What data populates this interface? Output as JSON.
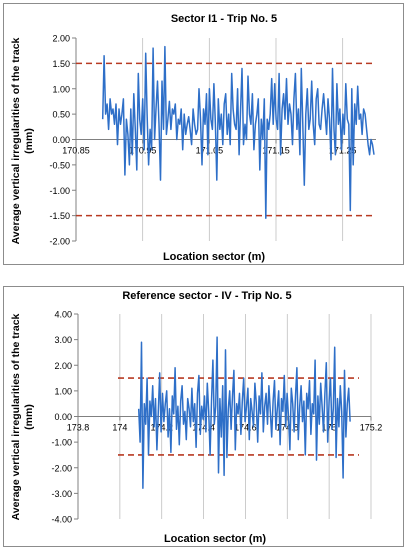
{
  "chart_data": [
    {
      "type": "line",
      "title": "Sector I1 - Trip No. 5",
      "xlabel": "Location sector (m)",
      "ylabel": "Average vertical irregularities of the track (mm)",
      "ylabel_lines": [
        "Average vertical irregularities of the track",
        "(mm)"
      ],
      "xlim": [
        170.85,
        171.3
      ],
      "ylim": [
        -2.0,
        2.0
      ],
      "x_ticks": [
        "170.85",
        "170.95",
        "171.05",
        "171.15",
        "171.25"
      ],
      "x_tick_values": [
        170.85,
        170.95,
        171.05,
        171.15,
        171.25
      ],
      "y_ticks": [
        "2.00",
        "1.50",
        "1.00",
        "0.50",
        "0.00",
        "-0.50",
        "-1.00",
        "-1.50",
        "-2.00"
      ],
      "y_tick_values": [
        2.0,
        1.5,
        1.0,
        0.5,
        0.0,
        -0.5,
        -1.0,
        -1.5,
        -2.0
      ],
      "thresholds": [
        1.5,
        -1.5
      ],
      "grid": "vertical",
      "series": [
        {
          "color": "#2e6fc8",
          "x_start": 170.89,
          "x_end": 171.297,
          "values": [
            0.4,
            1.65,
            0.5,
            0.7,
            0.2,
            0.8,
            0.5,
            0.6,
            0.3,
            0.7,
            -0.1,
            0.6,
            0.3,
            0.5,
            0.8,
            -0.7,
            0.4,
            0.1,
            -0.5,
            0.6,
            -0.3,
            0.9,
            0.2,
            -0.6,
            1.3,
            0.4,
            0.1,
            0.8,
            -0.2,
            1.7,
            0.5,
            -0.5,
            0.2,
            -0.2,
            1.8,
            0.0,
            0.6,
            1.15,
            0.3,
            -0.8,
            1.15,
            0.2,
            1.83,
            0.1,
            0.4,
            0.75,
            0.2,
            0.6,
            0.5,
            0.7,
            0.0,
            0.4,
            0.3,
            0.6,
            -0.2,
            0.5,
            0.1,
            0.3,
            0.45,
            0.2,
            -0.1,
            0.6,
            0.3,
            0.1,
            0.2,
            1.0,
            0.4,
            -0.5,
            0.6,
            0.3,
            0.9,
            -0.3,
            1.0,
            0.4,
            0.2,
            1.1,
            0.3,
            -0.8,
            0.8,
            0.2,
            0.5,
            -0.1,
            0.7,
            0.9,
            0.1,
            0.5,
            -0.1,
            1.3,
            0.6,
            0.3,
            0.2,
            1.0,
            -0.3,
            0.6,
            1.4,
            -0.1,
            0.3,
            0.0,
            1.25,
            0.5,
            0.3,
            0.9,
            -0.2,
            0.3,
            0.5,
            0.8,
            -0.6,
            0.4,
            0.0,
            0.8,
            -1.55,
            0.4,
            0.2,
            0.5,
            1.2,
            0.3,
            1.1,
            0.4,
            0.2,
            1.3,
            -0.3,
            0.6,
            0.9,
            0.4,
            1.2,
            0.3,
            0.7,
            0.5,
            -0.1,
            0.8,
            1.3,
            0.2,
            0.6,
            -0.3,
            1.4,
            0.3,
            -0.9,
            0.5,
            1.0,
            0.2,
            0.4,
            1.15,
            0.3,
            -0.1,
            0.8,
            1.0,
            0.3,
            0.2,
            0.6,
            0.9,
            0.5,
            0.1,
            0.8,
            0.4,
            -0.4,
            1.4,
            0.2,
            -0.3,
            1.1,
            0.3,
            0.6,
            -0.2,
            0.5,
            0.1,
            1.1,
            0.4,
            0.3,
            -1.4,
            1.0,
            -0.5,
            0.7,
            0.3,
            1.05,
            0.4,
            0.5,
            0.1,
            0.6,
            0.5,
            0.2,
            -0.1,
            -0.3,
            0.0,
            -0.1,
            -0.3
          ]
        }
      ]
    },
    {
      "type": "line",
      "title": "Reference sector - IV - Trip No. 5",
      "xlabel": "Location sector (m)",
      "ylabel": "Average vertical irregularities of the track (mm)",
      "ylabel_lines": [
        "Average vertical irregularities of the track",
        "(mm)"
      ],
      "xlim": [
        173.8,
        175.2
      ],
      "ylim": [
        -4.0,
        4.0
      ],
      "x_ticks": [
        "173.8",
        "174",
        "174.2",
        "174.4",
        "174.6",
        "174.8",
        "175",
        "175.2"
      ],
      "x_tick_values": [
        173.8,
        174.0,
        174.2,
        174.4,
        174.6,
        174.8,
        175.0,
        175.2
      ],
      "y_ticks": [
        "4.00",
        "3.00",
        "2.00",
        "1.00",
        "0.00",
        "-1.00",
        "-2.00",
        "-3.00",
        "-4.00"
      ],
      "y_tick_values": [
        4.0,
        3.0,
        2.0,
        1.0,
        0.0,
        -1.0,
        -2.0,
        -3.0,
        -4.0
      ],
      "thresholds": [
        1.5,
        -1.5
      ],
      "grid": "vertical",
      "series": [
        {
          "color": "#2e6fc8",
          "x_start": 174.09,
          "x_end": 175.1,
          "values": [
            0.3,
            -1.0,
            2.9,
            -2.8,
            0.5,
            -0.3,
            1.5,
            -1.5,
            0.6,
            0.0,
            1.2,
            -0.4,
            0.7,
            -1.3,
            0.2,
            1.7,
            -0.6,
            0.9,
            -0.2,
            0.5,
            1.0,
            -0.8,
            0.3,
            -1.4,
            0.8,
            0.1,
            1.9,
            -0.5,
            0.4,
            -1.1,
            0.6,
            1.2,
            -0.3,
            0.2,
            -0.9,
            0.7,
            0.3,
            -0.4,
            1.1,
            -0.2,
            0.5,
            -1.2,
            0.9,
            1.6,
            -0.7,
            0.4,
            -0.1,
            0.8,
            -0.6,
            1.3,
            0.2,
            -1.5,
            0.6,
            2.2,
            -0.3,
            0.4,
            3.1,
            -2.2,
            0.7,
            -0.8,
            1.2,
            -2.3,
            2.6,
            -1.6,
            0.3,
            1.0,
            -0.5,
            0.8,
            1.8,
            -1.3,
            0.5,
            0.1,
            0.9,
            -0.7,
            0.6,
            1.5,
            -0.2,
            0.4,
            1.1,
            -0.9,
            0.7,
            0.2,
            -0.4,
            1.3,
            0.5,
            -1.0,
            0.8,
            0.1,
            1.7,
            -0.6,
            0.4,
            0.9,
            -0.3,
            1.2,
            0.2,
            -0.8,
            0.6,
            1.4,
            -0.5,
            0.3,
            1.0,
            -1.1,
            0.7,
            0.2,
            1.6,
            -0.4,
            0.9,
            0.0,
            -1.3,
            1.1,
            0.5,
            -0.6,
            0.8,
            1.9,
            -0.9,
            0.4,
            1.2,
            -0.2,
            0.6,
            -1.5,
            0.9,
            0.3,
            1.4,
            -0.7,
            0.5,
            0.1,
            2.2,
            -1.7,
            0.8,
            -0.3,
            1.3,
            0.4,
            -0.6,
            0.9,
            2.1,
            -1.0,
            0.6,
            1.5,
            -0.5,
            0.3,
            2.7,
            -1.6,
            0.7,
            -0.4,
            1.2,
            0.2,
            -2.4,
            1.8,
            -0.8,
            0.5,
            1.1,
            -0.2
          ]
        }
      ]
    }
  ]
}
